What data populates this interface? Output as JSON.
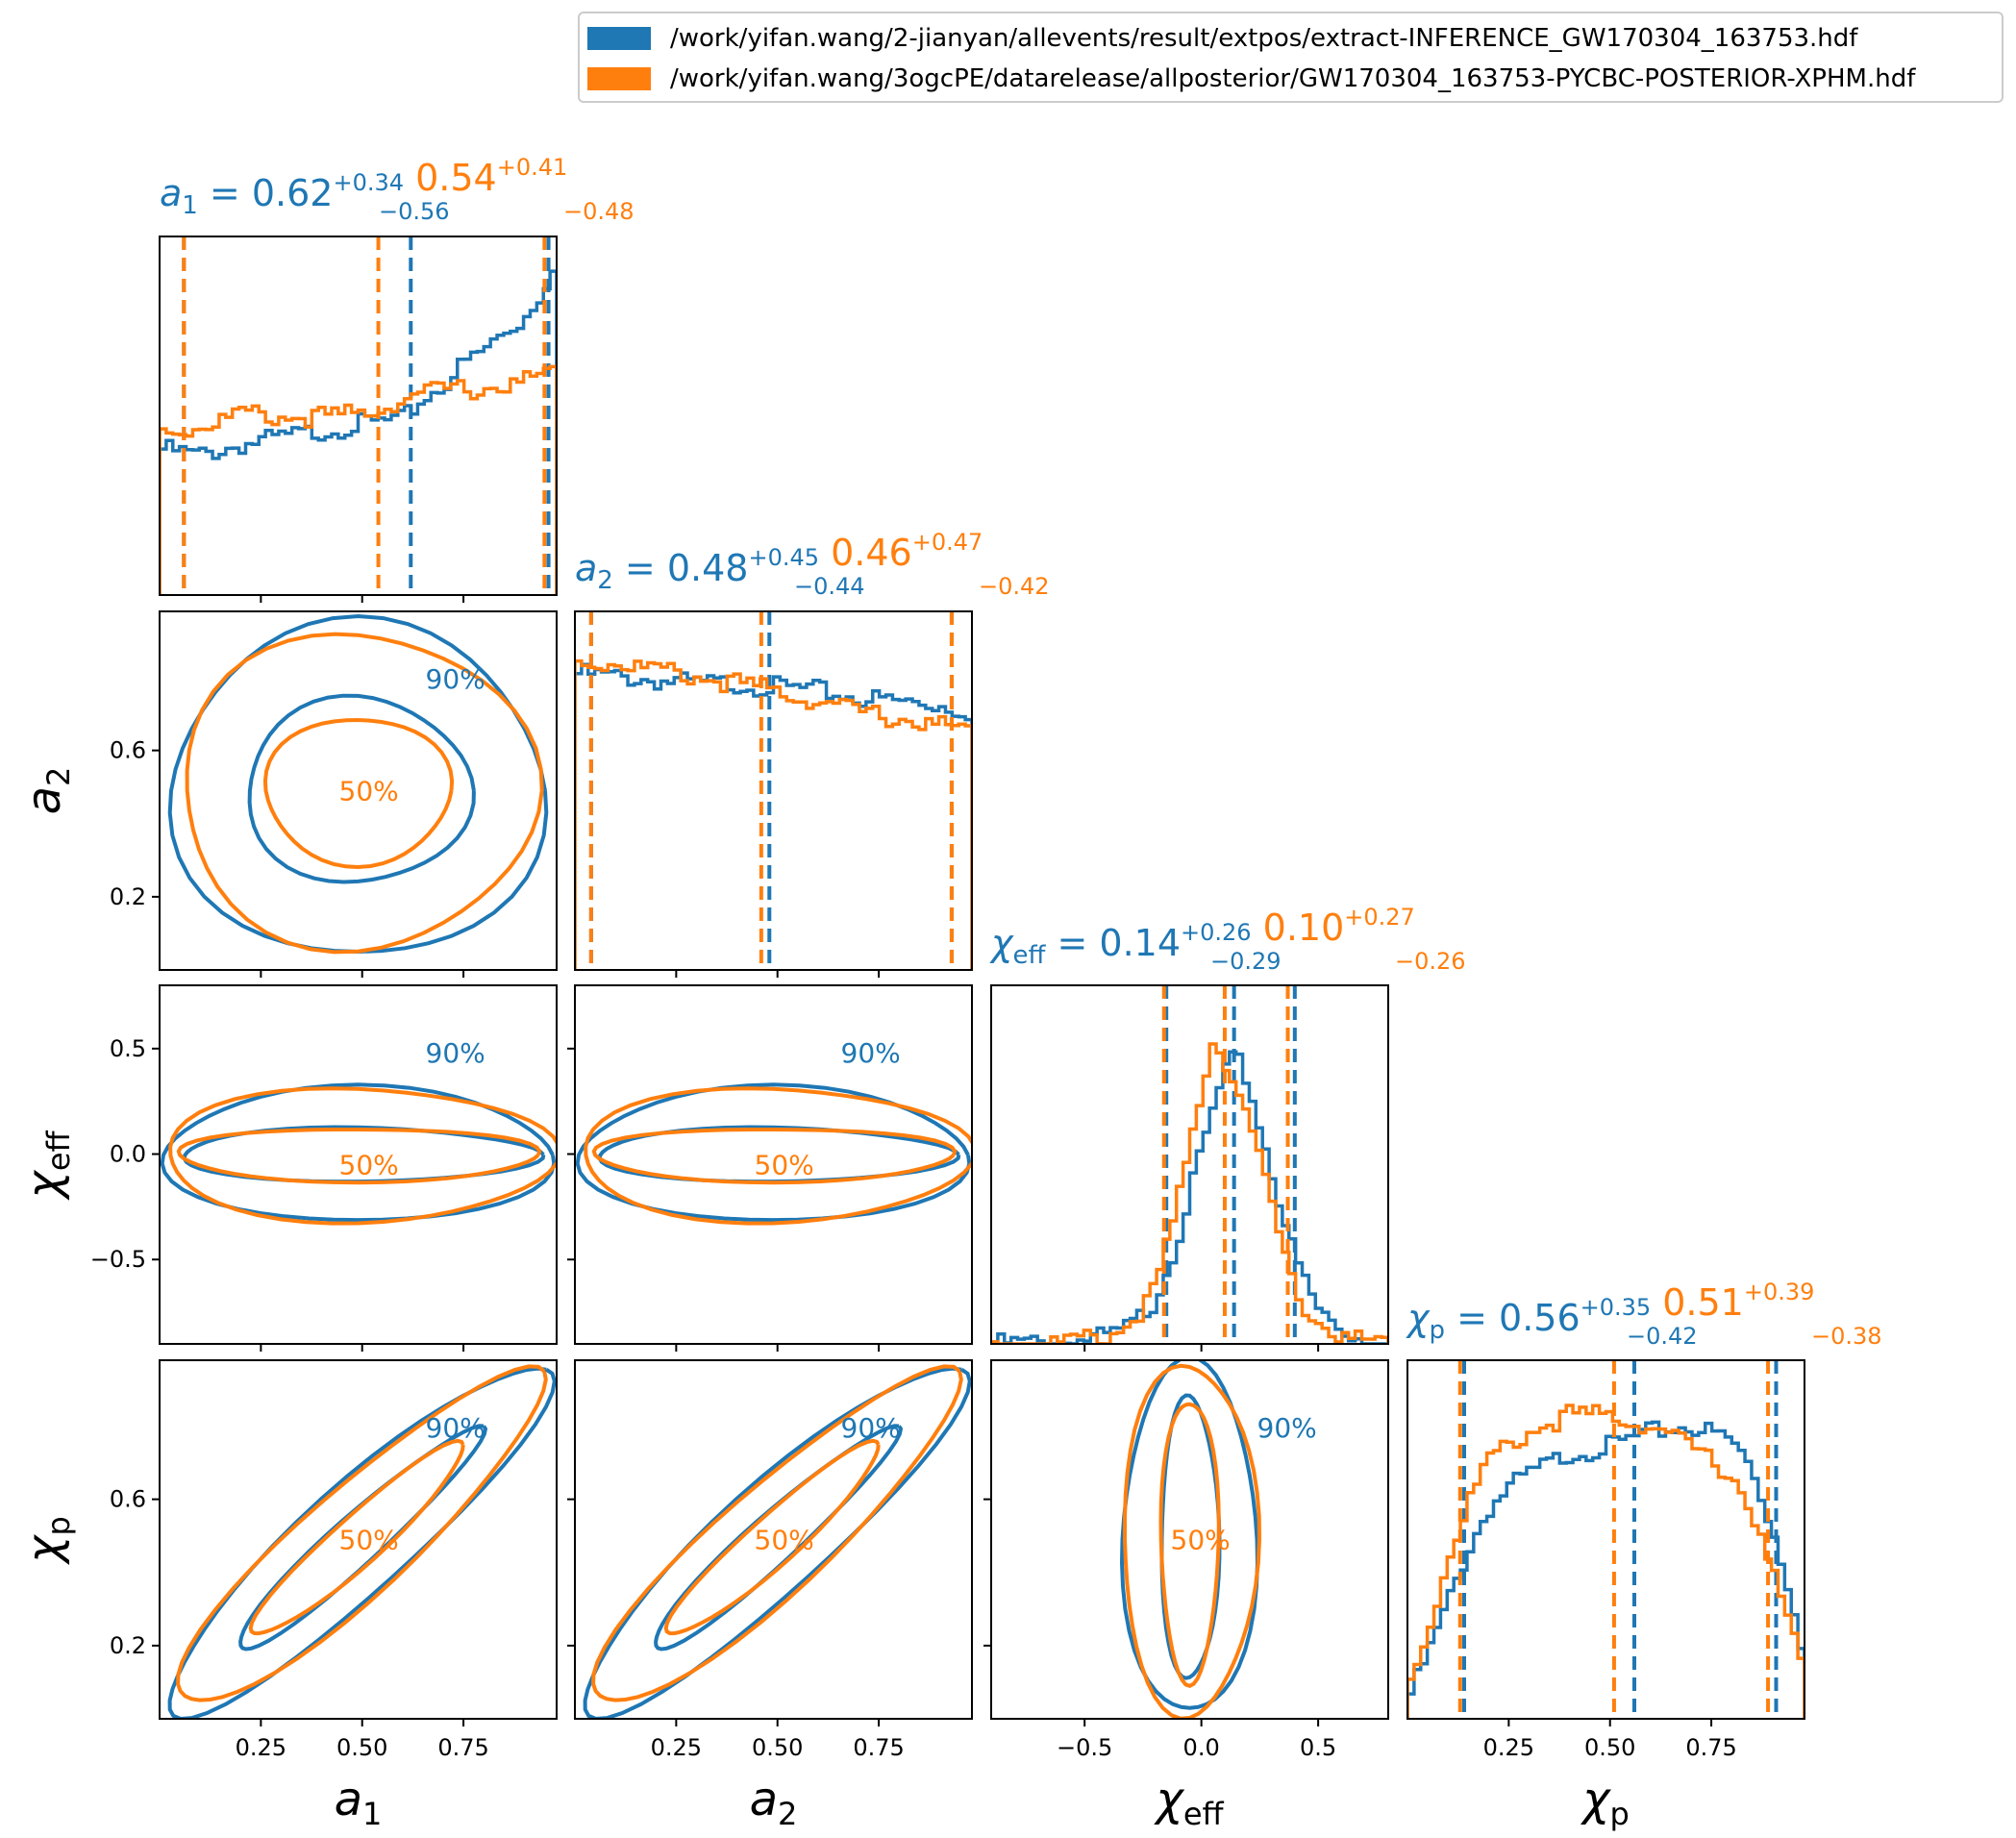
{
  "colors": {
    "run1": "#1f77b4",
    "run2": "#ff7f0e"
  },
  "legend": [
    {
      "label": "/work/yifan.wang/2-jianyan/allevents/result/extpos/extract-INFERENCE_GW170304_163753.hdf",
      "color": "#1f77b4"
    },
    {
      "label": "/work/yifan.wang/3ogcPE/datarelease/allposterior/GW170304_163753-PYCBC-POSTERIOR-XPHM.hdf",
      "color": "#ff7f0e"
    }
  ],
  "chart_data": {
    "type": "corner",
    "parameters": [
      {
        "symbol": "a",
        "sub": "1",
        "range": [
          0.0,
          0.98
        ],
        "ticks": [
          0.25,
          0.5,
          0.75
        ],
        "ticklabels": [
          "0.25",
          "0.50",
          "0.75"
        ]
      },
      {
        "symbol": "a",
        "sub": "2",
        "range": [
          0.0,
          0.98
        ],
        "ticks": [
          0.25,
          0.5,
          0.75
        ],
        "ticklabels": [
          "0.25",
          "0.50",
          "0.75"
        ]
      },
      {
        "symbol": "χ",
        "sub": "eff",
        "range": [
          -0.9,
          0.8
        ],
        "ticks": [
          -0.5,
          0.0,
          0.5
        ],
        "ticklabels": [
          "−0.5",
          "0.0",
          "0.5"
        ]
      },
      {
        "symbol": "χ",
        "sub": "p",
        "range": [
          0.0,
          0.98
        ],
        "ticks": [
          0.25,
          0.5,
          0.75
        ],
        "ticklabels": [
          "0.25",
          "0.50",
          "0.75"
        ]
      }
    ],
    "ytick_sets": [
      null,
      {
        "ticks": [
          0.2,
          0.6
        ],
        "ticklabels": [
          "0.2",
          "0.6"
        ]
      },
      {
        "ticks": [
          -0.5,
          0.0,
          0.5
        ],
        "ticklabels": [
          "−0.5",
          "0.0",
          "0.5"
        ]
      },
      {
        "ticks": [
          0.2,
          0.6
        ],
        "ticklabels": [
          "0.2",
          "0.6"
        ]
      }
    ],
    "titles": [
      {
        "sym": "a",
        "sub": "1",
        "median": "0.62",
        "plus": "+0.34",
        "minus": "−0.56",
        "median2": "0.54",
        "plus2": "+0.41",
        "minus2": "−0.48"
      },
      {
        "sym": "a",
        "sub": "2",
        "median": "0.48",
        "plus": "+0.45",
        "minus": "−0.44",
        "median2": "0.46",
        "plus2": "+0.47",
        "minus2": "−0.42"
      },
      {
        "sym": "χ",
        "sub": "eff",
        "median": "0.14",
        "plus": "+0.26",
        "minus": "−0.29",
        "median2": "0.10",
        "plus2": "+0.27",
        "minus2": "−0.26"
      },
      {
        "sym": "χ",
        "sub": "p",
        "median": "0.56",
        "plus": "+0.35",
        "minus": "−0.42",
        "median2": "0.51",
        "plus2": "+0.39",
        "minus2": "−0.38"
      }
    ],
    "marginals": [
      {
        "series": [
          {
            "name": "/work/yifan.wang/2-jianyan/allevents/result/extpos/extract-INFERENCE_GW170304_163753.hdf",
            "lines": [
              0.06,
              0.62,
              0.96
            ],
            "points": [
              [
                0.0,
                0.42
              ],
              [
                0.1,
                0.4
              ],
              [
                0.2,
                0.43
              ],
              [
                0.3,
                0.45
              ],
              [
                0.4,
                0.47
              ],
              [
                0.5,
                0.49
              ],
              [
                0.6,
                0.5
              ],
              [
                0.65,
                0.56
              ],
              [
                0.7,
                0.6
              ],
              [
                0.75,
                0.66
              ],
              [
                0.8,
                0.7
              ],
              [
                0.85,
                0.75
              ],
              [
                0.9,
                0.79
              ],
              [
                0.95,
                0.88
              ],
              [
                0.98,
                0.98
              ]
            ]
          },
          {
            "name": "/work/yifan.wang/3ogcPE/datarelease/allposterior/GW170304_163753-PYCBC-POSTERIOR-XPHM.hdf",
            "lines": [
              0.06,
              0.54,
              0.95
            ],
            "points": [
              [
                0.0,
                0.47
              ],
              [
                0.1,
                0.48
              ],
              [
                0.2,
                0.52
              ],
              [
                0.3,
                0.51
              ],
              [
                0.4,
                0.51
              ],
              [
                0.5,
                0.52
              ],
              [
                0.6,
                0.56
              ],
              [
                0.7,
                0.59
              ],
              [
                0.8,
                0.59
              ],
              [
                0.9,
                0.61
              ],
              [
                0.98,
                0.64
              ]
            ]
          }
        ]
      },
      {
        "series": [
          {
            "name": "/work/yifan.wang/2-jianyan/allevents/result/extpos/extract-INFERENCE_GW170304_163753.hdf",
            "lines": [
              0.04,
              0.48,
              0.93
            ],
            "points": [
              [
                0.0,
                0.85
              ],
              [
                0.1,
                0.84
              ],
              [
                0.2,
                0.83
              ],
              [
                0.3,
                0.82
              ],
              [
                0.4,
                0.82
              ],
              [
                0.5,
                0.81
              ],
              [
                0.6,
                0.8
              ],
              [
                0.7,
                0.78
              ],
              [
                0.8,
                0.77
              ],
              [
                0.9,
                0.76
              ],
              [
                0.98,
                0.74
              ]
            ]
          },
          {
            "name": "/work/yifan.wang/3ogcPE/datarelease/allposterior/GW170304_163753-PYCBC-POSTERIOR-XPHM.hdf",
            "lines": [
              0.04,
              0.46,
              0.93
            ],
            "points": [
              [
                0.0,
                0.88
              ],
              [
                0.1,
                0.88
              ],
              [
                0.2,
                0.86
              ],
              [
                0.3,
                0.84
              ],
              [
                0.4,
                0.82
              ],
              [
                0.5,
                0.8
              ],
              [
                0.6,
                0.77
              ],
              [
                0.7,
                0.74
              ],
              [
                0.8,
                0.72
              ],
              [
                0.9,
                0.7
              ],
              [
                0.98,
                0.68
              ]
            ]
          }
        ]
      },
      {
        "series": [
          {
            "name": "/work/yifan.wang/2-jianyan/allevents/result/extpos/extract-INFERENCE_GW170304_163753.hdf",
            "lines": [
              -0.15,
              0.14,
              0.4
            ],
            "points": [
              [
                -0.9,
                0.0
              ],
              [
                -0.6,
                0.005
              ],
              [
                -0.4,
                0.02
              ],
              [
                -0.3,
                0.05
              ],
              [
                -0.2,
                0.12
              ],
              [
                -0.1,
                0.3
              ],
              [
                0.0,
                0.55
              ],
              [
                0.1,
                0.78
              ],
              [
                0.15,
                0.82
              ],
              [
                0.2,
                0.75
              ],
              [
                0.3,
                0.5
              ],
              [
                0.4,
                0.25
              ],
              [
                0.5,
                0.1
              ],
              [
                0.6,
                0.04
              ],
              [
                0.7,
                0.01
              ],
              [
                0.8,
                0.0
              ]
            ]
          },
          {
            "name": "/work/yifan.wang/3ogcPE/datarelease/allposterior/GW170304_163753-PYCBC-POSTERIOR-XPHM.hdf",
            "lines": [
              -0.16,
              0.1,
              0.37
            ],
            "points": [
              [
                -0.9,
                0.0
              ],
              [
                -0.6,
                0.005
              ],
              [
                -0.4,
                0.02
              ],
              [
                -0.3,
                0.06
              ],
              [
                -0.2,
                0.15
              ],
              [
                -0.1,
                0.4
              ],
              [
                0.0,
                0.72
              ],
              [
                0.05,
                0.88
              ],
              [
                0.1,
                0.82
              ],
              [
                0.2,
                0.65
              ],
              [
                0.3,
                0.4
              ],
              [
                0.4,
                0.15
              ],
              [
                0.5,
                0.06
              ],
              [
                0.6,
                0.02
              ],
              [
                0.7,
                0.005
              ],
              [
                0.8,
                0.0
              ]
            ]
          }
        ]
      },
      {
        "series": [
          {
            "name": "/work/yifan.wang/2-jianyan/allevents/result/extpos/extract-INFERENCE_GW170304_163753.hdf",
            "lines": [
              0.14,
              0.56,
              0.91
            ],
            "points": [
              [
                0.0,
                0.05
              ],
              [
                0.05,
                0.18
              ],
              [
                0.1,
                0.33
              ],
              [
                0.15,
                0.48
              ],
              [
                0.2,
                0.6
              ],
              [
                0.25,
                0.66
              ],
              [
                0.3,
                0.7
              ],
              [
                0.4,
                0.76
              ],
              [
                0.5,
                0.78
              ],
              [
                0.6,
                0.82
              ],
              [
                0.7,
                0.84
              ],
              [
                0.8,
                0.8
              ],
              [
                0.85,
                0.72
              ],
              [
                0.9,
                0.55
              ],
              [
                0.95,
                0.35
              ],
              [
                0.98,
                0.18
              ]
            ]
          },
          {
            "name": "/work/yifan.wang/3ogcPE/datarelease/allposterior/GW170304_163753-PYCBC-POSTERIOR-XPHM.hdf",
            "lines": [
              0.13,
              0.51,
              0.89
            ],
            "points": [
              [
                0.0,
                0.08
              ],
              [
                0.05,
                0.25
              ],
              [
                0.1,
                0.45
              ],
              [
                0.15,
                0.62
              ],
              [
                0.2,
                0.74
              ],
              [
                0.3,
                0.82
              ],
              [
                0.4,
                0.87
              ],
              [
                0.5,
                0.87
              ],
              [
                0.6,
                0.84
              ],
              [
                0.7,
                0.78
              ],
              [
                0.8,
                0.7
              ],
              [
                0.85,
                0.6
              ],
              [
                0.9,
                0.42
              ],
              [
                0.95,
                0.25
              ],
              [
                0.98,
                0.12
              ]
            ]
          }
        ]
      }
    ],
    "contour_labels": {
      "p50": "50%",
      "p90": "90%"
    }
  }
}
